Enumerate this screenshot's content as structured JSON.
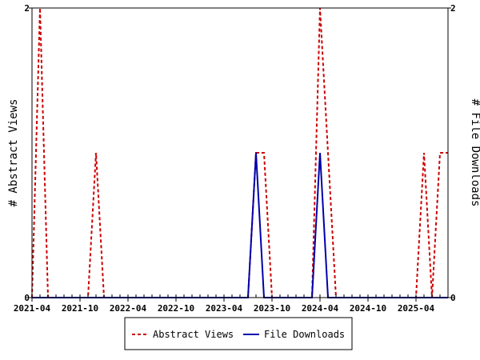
{
  "chart_data": {
    "type": "line",
    "title": "",
    "xlabel": "",
    "ylabel_left": "# Abstract Views",
    "ylabel_right": "# File Downloads",
    "ylim": [
      0,
      2
    ],
    "y_ticks": [
      "0",
      "2"
    ],
    "x_ticks": [
      "2021-04",
      "2021-10",
      "2022-04",
      "2022-10",
      "2023-04",
      "2023-10",
      "2024-04",
      "2024-10",
      "2025-04"
    ],
    "grid": false,
    "legend_position": "bottom",
    "colors": {
      "abstract_views": "#cc0000",
      "file_downloads": "#0000aa"
    },
    "series": [
      {
        "name": "Abstract Views",
        "style": "dashed",
        "points": [
          [
            "2021-04",
            0
          ],
          [
            "2021-05",
            2
          ],
          [
            "2021-06",
            0
          ],
          [
            "2021-07",
            0
          ],
          [
            "2021-08",
            0
          ],
          [
            "2021-09",
            0
          ],
          [
            "2021-10",
            0
          ],
          [
            "2021-11",
            0
          ],
          [
            "2021-12",
            1
          ],
          [
            "2022-01",
            0
          ],
          [
            "2022-02",
            0
          ],
          [
            "2022-03",
            0
          ],
          [
            "2022-04",
            0
          ],
          [
            "2022-05",
            0
          ],
          [
            "2022-06",
            0
          ],
          [
            "2022-07",
            0
          ],
          [
            "2022-08",
            0
          ],
          [
            "2022-09",
            0
          ],
          [
            "2022-10",
            0
          ],
          [
            "2022-11",
            0
          ],
          [
            "2022-12",
            0
          ],
          [
            "2023-01",
            0
          ],
          [
            "2023-02",
            0
          ],
          [
            "2023-03",
            0
          ],
          [
            "2023-04",
            0
          ],
          [
            "2023-05",
            0
          ],
          [
            "2023-06",
            0
          ],
          [
            "2023-07",
            0
          ],
          [
            "2023-08",
            1
          ],
          [
            "2023-09",
            1
          ],
          [
            "2023-10",
            0
          ],
          [
            "2023-11",
            0
          ],
          [
            "2023-12",
            0
          ],
          [
            "2024-01",
            0
          ],
          [
            "2024-02",
            0
          ],
          [
            "2024-03",
            0
          ],
          [
            "2024-04",
            2
          ],
          [
            "2024-05",
            1
          ],
          [
            "2024-06",
            0
          ],
          [
            "2024-07",
            0
          ],
          [
            "2024-08",
            0
          ],
          [
            "2024-09",
            0
          ],
          [
            "2024-10",
            0
          ],
          [
            "2024-11",
            0
          ],
          [
            "2024-12",
            0
          ],
          [
            "2025-01",
            0
          ],
          [
            "2025-02",
            0
          ],
          [
            "2025-03",
            0
          ],
          [
            "2025-04",
            0
          ],
          [
            "2025-05",
            1
          ],
          [
            "2025-06",
            0
          ],
          [
            "2025-07",
            1
          ],
          [
            "2025-08",
            1
          ]
        ]
      },
      {
        "name": "File Downloads",
        "style": "solid",
        "points": [
          [
            "2021-04",
            0
          ],
          [
            "2021-05",
            0
          ],
          [
            "2021-06",
            0
          ],
          [
            "2021-07",
            0
          ],
          [
            "2021-08",
            0
          ],
          [
            "2021-09",
            0
          ],
          [
            "2021-10",
            0
          ],
          [
            "2021-11",
            0
          ],
          [
            "2021-12",
            0
          ],
          [
            "2022-01",
            0
          ],
          [
            "2022-02",
            0
          ],
          [
            "2022-03",
            0
          ],
          [
            "2022-04",
            0
          ],
          [
            "2022-05",
            0
          ],
          [
            "2022-06",
            0
          ],
          [
            "2022-07",
            0
          ],
          [
            "2022-08",
            0
          ],
          [
            "2022-09",
            0
          ],
          [
            "2022-10",
            0
          ],
          [
            "2022-11",
            0
          ],
          [
            "2022-12",
            0
          ],
          [
            "2023-01",
            0
          ],
          [
            "2023-02",
            0
          ],
          [
            "2023-03",
            0
          ],
          [
            "2023-04",
            0
          ],
          [
            "2023-05",
            0
          ],
          [
            "2023-06",
            0
          ],
          [
            "2023-07",
            0
          ],
          [
            "2023-08",
            1
          ],
          [
            "2023-09",
            0
          ],
          [
            "2023-10",
            0
          ],
          [
            "2023-11",
            0
          ],
          [
            "2023-12",
            0
          ],
          [
            "2024-01",
            0
          ],
          [
            "2024-02",
            0
          ],
          [
            "2024-03",
            0
          ],
          [
            "2024-04",
            1
          ],
          [
            "2024-05",
            0
          ],
          [
            "2024-06",
            0
          ],
          [
            "2024-07",
            0
          ],
          [
            "2024-08",
            0
          ],
          [
            "2024-09",
            0
          ],
          [
            "2024-10",
            0
          ],
          [
            "2024-11",
            0
          ],
          [
            "2024-12",
            0
          ],
          [
            "2025-01",
            0
          ],
          [
            "2025-02",
            0
          ],
          [
            "2025-03",
            0
          ],
          [
            "2025-04",
            0
          ],
          [
            "2025-05",
            0
          ],
          [
            "2025-06",
            0
          ],
          [
            "2025-07",
            0
          ],
          [
            "2025-08",
            0
          ]
        ]
      }
    ]
  }
}
